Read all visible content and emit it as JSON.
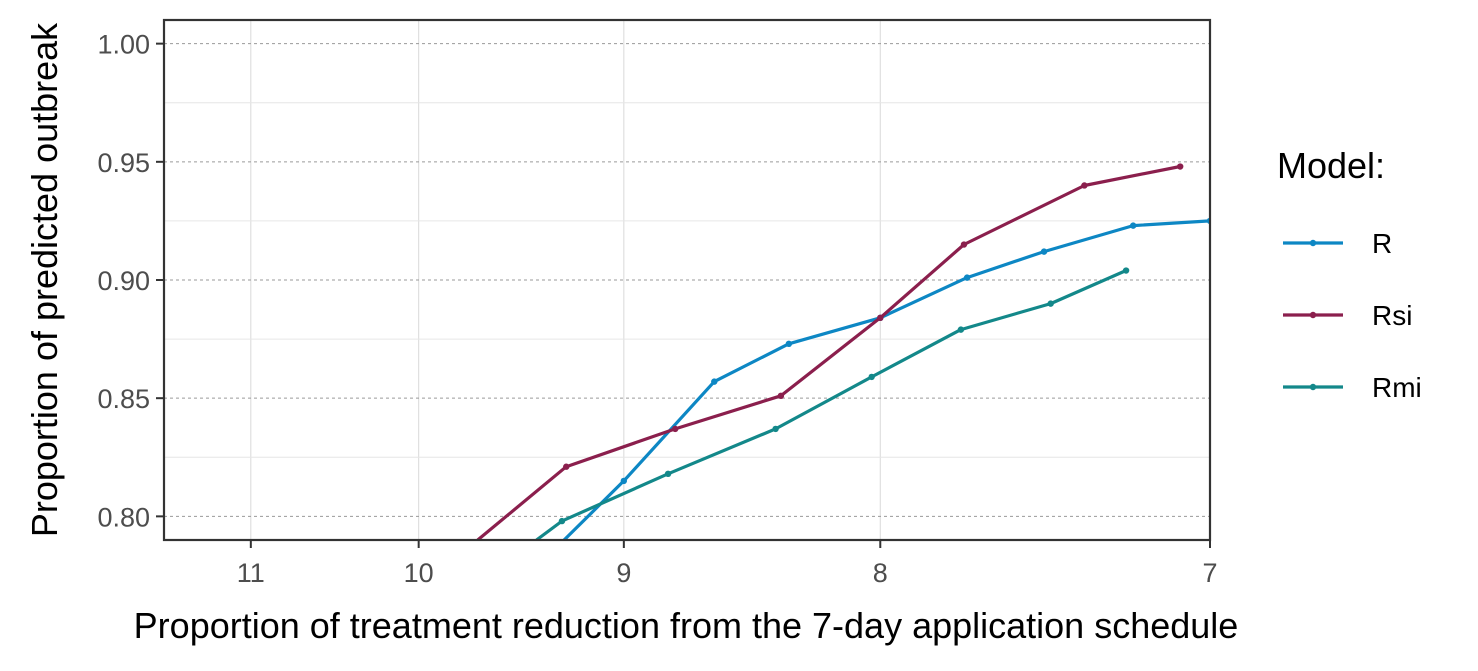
{
  "chart_data": {
    "type": "line",
    "xlabel": "Proportion of treatment reduction from the 7-day application schedule",
    "ylabel": "Proportion of predicted outbreak",
    "x_reversed": true,
    "x_scale": "reciprocal",
    "xlim": [
      11.6,
      7
    ],
    "ylim": [
      0.79,
      1.01
    ],
    "x_ticks": [
      11,
      10,
      9,
      8,
      7
    ],
    "x_tick_labels": [
      "11",
      "10",
      "9",
      "8",
      "7"
    ],
    "y_ticks": [
      0.8,
      0.85,
      0.9,
      0.95,
      1.0
    ],
    "y_tick_labels": [
      "0.80",
      "0.85",
      "0.90",
      "0.95",
      "1.00"
    ],
    "grid": true,
    "legend": {
      "title": "Model:",
      "position": "right"
    },
    "series": [
      {
        "name": "R",
        "color": "#0d87c4",
        "points": [
          [
            9.27,
            0.79
          ],
          [
            9.0,
            0.815
          ],
          [
            8.62,
            0.857
          ],
          [
            8.33,
            0.873
          ],
          [
            8.0,
            0.884
          ],
          [
            7.71,
            0.901
          ],
          [
            7.47,
            0.912
          ],
          [
            7.21,
            0.923
          ],
          [
            7.0,
            0.925
          ]
        ]
      },
      {
        "name": "Rsi",
        "color": "#8b1f4d",
        "points": [
          [
            9.69,
            0.79
          ],
          [
            9.26,
            0.821
          ],
          [
            8.78,
            0.837
          ],
          [
            8.36,
            0.851
          ],
          [
            8.0,
            0.884
          ],
          [
            7.72,
            0.915
          ],
          [
            7.35,
            0.94
          ],
          [
            7.08,
            0.948
          ]
        ]
      },
      {
        "name": "Rmi",
        "color": "#13888a",
        "points": [
          [
            9.4,
            0.79
          ],
          [
            9.28,
            0.798
          ],
          [
            8.81,
            0.818
          ],
          [
            8.38,
            0.837
          ],
          [
            8.03,
            0.859
          ],
          [
            7.73,
            0.879
          ],
          [
            7.45,
            0.89
          ],
          [
            7.23,
            0.904
          ]
        ]
      }
    ]
  }
}
